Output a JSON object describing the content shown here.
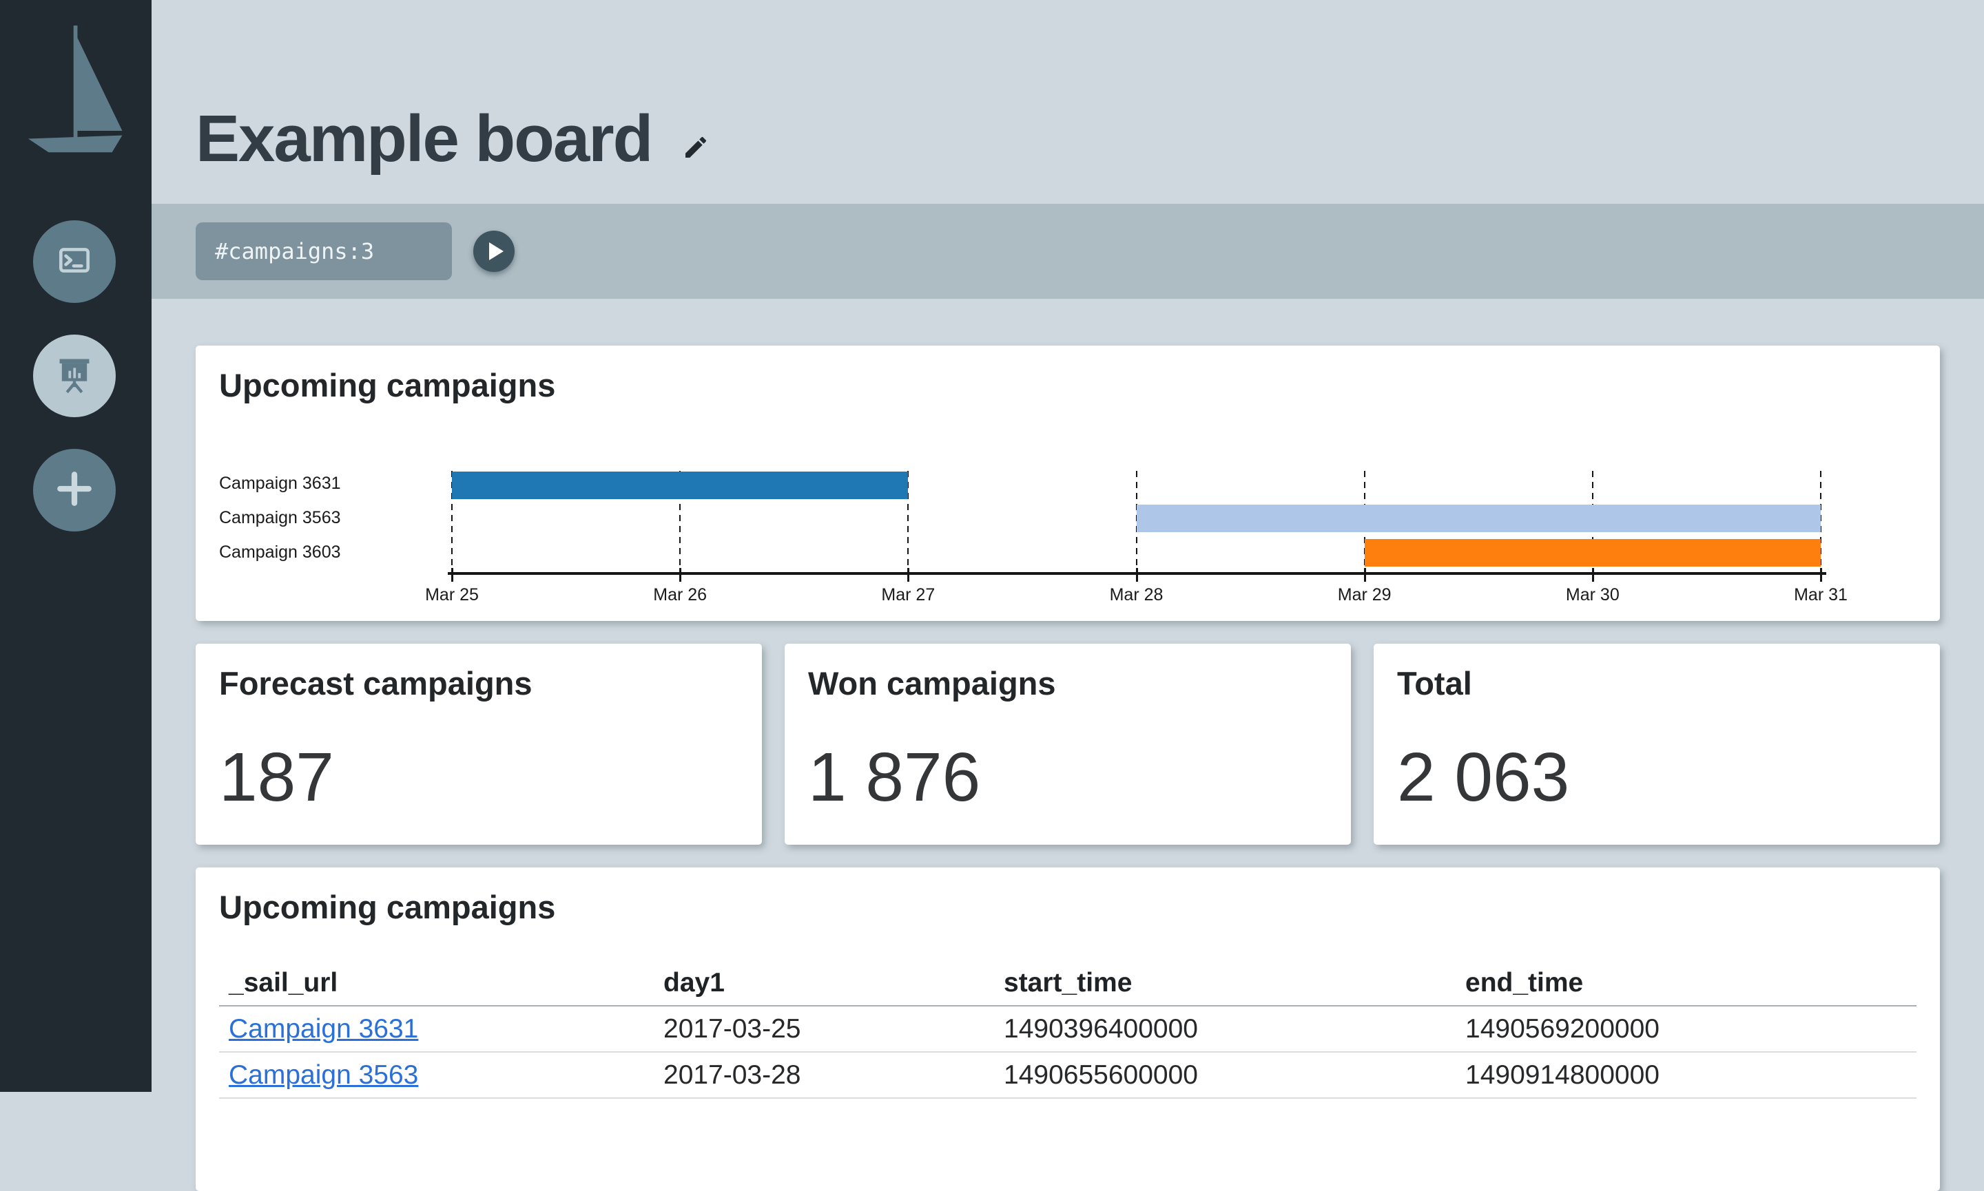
{
  "colors": {
    "bar_blue": "#1f77b4",
    "bar_light_blue": "#aec7e8",
    "bar_orange": "#ff7f0e",
    "link": "#2a70d8",
    "sidebar_bg": "#212931",
    "accent_slate": "#5e7b89"
  },
  "sidebar": {
    "logo": "sailboat-logo",
    "buttons": [
      {
        "icon": "terminal"
      },
      {
        "icon": "presentation-chart"
      },
      {
        "icon": "add-plus"
      }
    ]
  },
  "header": {
    "title": "Example board",
    "edit_icon": "pencil"
  },
  "query": {
    "value": "#campaigns:3",
    "run_icon": "play"
  },
  "gantt_card": {
    "title": "Upcoming campaigns",
    "chart_data": {
      "type": "bar",
      "subtype": "horizontal-gantt",
      "title": "Upcoming campaigns",
      "rows": [
        {
          "label": "Campaign 3631",
          "start": "2017-03-25",
          "end": "2017-03-27",
          "color": "#1f77b4"
        },
        {
          "label": "Campaign 3563",
          "start": "2017-03-28",
          "end": "2017-03-31",
          "color": "#aec7e8"
        },
        {
          "label": "Campaign 3603",
          "start": "2017-03-29",
          "end": "2017-03-31",
          "color": "#ff7f0e"
        }
      ],
      "x_axis": {
        "start": "2017-03-25",
        "end": "2017-03-31",
        "tick_labels": [
          "Mar 25",
          "Mar 26",
          "Mar 27",
          "Mar 28",
          "Mar 29",
          "Mar 30",
          "Mar 31"
        ],
        "gridlines": "dashed"
      }
    }
  },
  "stats": [
    {
      "label": "Forecast campaigns",
      "value": "187"
    },
    {
      "label": "Won campaigns",
      "value": "1 876"
    },
    {
      "label": "Total",
      "value": "2 063"
    }
  ],
  "table_card": {
    "title": "Upcoming campaigns",
    "columns": [
      "_sail_url",
      "day1",
      "start_time",
      "end_time"
    ],
    "rows": [
      {
        "cells": [
          "Campaign 3631",
          "2017-03-25",
          "1490396400000",
          "1490569200000"
        ]
      },
      {
        "cells": [
          "Campaign 3563",
          "2017-03-28",
          "1490655600000",
          "1490914800000"
        ]
      }
    ]
  }
}
